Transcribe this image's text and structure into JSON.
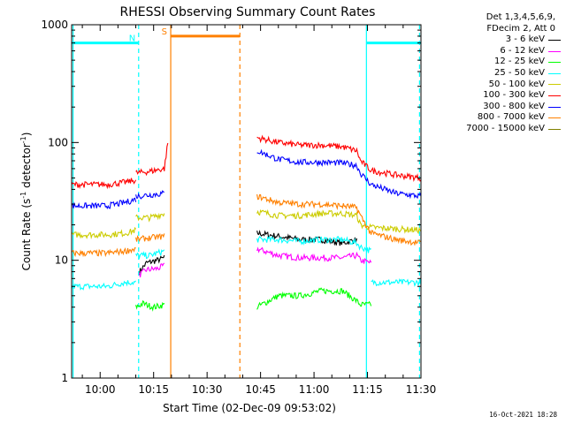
{
  "chart_data": {
    "type": "line",
    "title": "RHESSI Observing Summary Count Rates",
    "xlabel": "Start Time (02-Dec-09 09:53:02)",
    "ylabel_main": "Count Rate (s",
    "ylabel_sup1": "-1",
    "ylabel_mid": " detector",
    "ylabel_sup2": "-1",
    "ylabel_end": ")",
    "yscale": "log",
    "ylim": [
      1,
      1000
    ],
    "xlim_minutes": [
      -8,
      90
    ],
    "x_tick_labels": [
      "10:00",
      "10:15",
      "10:30",
      "10:45",
      "11:00",
      "11:15",
      "11:30"
    ],
    "x_tick_minutes": [
      0,
      15,
      30,
      45,
      60,
      75,
      90
    ],
    "y_tick_labels": [
      "1",
      "10",
      "100",
      "1000"
    ],
    "y_tick_values": [
      1,
      10,
      100,
      1000
    ],
    "legend_header": [
      "Det 1,3,4,5,6,9,",
      "FDecim 2, Att 0"
    ],
    "series": [
      {
        "name": "3 - 6 keV",
        "color": "#000000",
        "segments": [
          [
            [
              11,
              8
            ],
            [
              13,
              9.5
            ],
            [
              16,
              10
            ],
            [
              18,
              10.5
            ]
          ],
          [
            [
              44,
              17
            ],
            [
              50,
              16
            ],
            [
              56,
              15
            ],
            [
              62,
              15
            ],
            [
              68,
              14
            ],
            [
              72,
              15
            ]
          ]
        ]
      },
      {
        "name": "6 - 12 keV",
        "color": "#ff00ff",
        "segments": [
          [
            [
              11,
              7.5
            ],
            [
              13,
              8.3
            ],
            [
              16,
              8.5
            ],
            [
              18,
              9
            ]
          ],
          [
            [
              44,
              12.5
            ],
            [
              50,
              11
            ],
            [
              56,
              10.5
            ],
            [
              62,
              10.5
            ],
            [
              68,
              10.5
            ],
            [
              72,
              11
            ],
            [
              73,
              10
            ],
            [
              76,
              9.5
            ]
          ]
        ]
      },
      {
        "name": "12 - 25 keV",
        "color": "#00ff00",
        "segments": [
          [
            [
              10,
              4
            ],
            [
              12,
              4.3
            ],
            [
              15,
              4
            ],
            [
              18,
              4.2
            ]
          ],
          [
            [
              44,
              4
            ],
            [
              50,
              5
            ],
            [
              56,
              5
            ],
            [
              62,
              5.5
            ],
            [
              68,
              5.5
            ],
            [
              72,
              4.5
            ],
            [
              73,
              4.2
            ],
            [
              76,
              4.2
            ]
          ]
        ]
      },
      {
        "name": "25 - 50 keV",
        "color": "#00ffff",
        "segments": [
          [
            [
              -8,
              6
            ],
            [
              2,
              6
            ],
            [
              7,
              6.5
            ],
            [
              10,
              6.5
            ]
          ],
          [
            [
              10,
              11
            ],
            [
              14,
              11
            ],
            [
              18,
              12
            ]
          ],
          [
            [
              44,
              15
            ],
            [
              50,
              15
            ],
            [
              56,
              14.5
            ],
            [
              62,
              15
            ],
            [
              68,
              15
            ],
            [
              72,
              14
            ],
            [
              73,
              13
            ],
            [
              76,
              12
            ]
          ],
          [
            [
              76,
              6.5
            ],
            [
              83,
              6.5
            ],
            [
              90,
              6.5
            ]
          ]
        ]
      },
      {
        "name": "50 - 100 keV",
        "color": "#cccc00",
        "segments": [
          [
            [
              -8,
              16.5
            ],
            [
              2,
              16.5
            ],
            [
              7,
              17
            ],
            [
              10,
              18
            ]
          ],
          [
            [
              10,
              23
            ],
            [
              14,
              23
            ],
            [
              18,
              25
            ]
          ],
          [
            [
              44,
              26
            ],
            [
              50,
              24
            ],
            [
              56,
              24
            ],
            [
              62,
              25
            ],
            [
              68,
              25
            ],
            [
              72,
              24
            ],
            [
              73,
              20
            ],
            [
              76,
              19
            ],
            [
              83,
              18.5
            ],
            [
              90,
              18
            ]
          ]
        ]
      },
      {
        "name": "100 - 300 keV",
        "color": "#ff0000",
        "segments": [
          [
            [
              -8,
              44
            ],
            [
              2,
              44
            ],
            [
              7,
              46
            ],
            [
              10,
              48
            ]
          ],
          [
            [
              10,
              55
            ],
            [
              14,
              57
            ],
            [
              18,
              60
            ],
            [
              19,
              100
            ]
          ],
          [
            [
              44,
              110
            ],
            [
              50,
              100
            ],
            [
              56,
              95
            ],
            [
              62,
              95
            ],
            [
              68,
              92
            ],
            [
              72,
              85
            ],
            [
              73,
              70
            ],
            [
              76,
              58
            ],
            [
              83,
              53
            ],
            [
              90,
              50
            ]
          ]
        ]
      },
      {
        "name": "300 - 800 keV",
        "color": "#0000ff",
        "segments": [
          [
            [
              -8,
              29
            ],
            [
              2,
              29
            ],
            [
              7,
              31
            ],
            [
              10,
              33
            ]
          ],
          [
            [
              10,
              35
            ],
            [
              14,
              36
            ],
            [
              18,
              37
            ]
          ],
          [
            [
              44,
              85
            ],
            [
              50,
              72
            ],
            [
              56,
              68
            ],
            [
              62,
              68
            ],
            [
              68,
              67
            ],
            [
              72,
              64
            ],
            [
              73,
              55
            ],
            [
              76,
              44
            ],
            [
              83,
              37
            ],
            [
              90,
              35
            ]
          ]
        ]
      },
      {
        "name": "800 - 7000 keV",
        "color": "#ff8000",
        "segments": [
          [
            [
              -8,
              11.5
            ],
            [
              2,
              11.5
            ],
            [
              7,
              12
            ],
            [
              10,
              12.5
            ]
          ],
          [
            [
              10,
              15
            ],
            [
              14,
              15.5
            ],
            [
              18,
              16
            ]
          ],
          [
            [
              44,
              35
            ],
            [
              50,
              31
            ],
            [
              56,
              30
            ],
            [
              62,
              30
            ],
            [
              68,
              29
            ],
            [
              72,
              28
            ],
            [
              73,
              24
            ],
            [
              76,
              17
            ],
            [
              83,
              15
            ],
            [
              90,
              14
            ]
          ]
        ]
      },
      {
        "name": "7000 - 15000 keV",
        "color": "#808000",
        "segments": []
      }
    ],
    "flags": [
      {
        "label": "N",
        "color": "#00ffff",
        "level": 700,
        "ranges": [
          [
            -8,
            10.8
          ],
          [
            74.7,
            90
          ]
        ],
        "label_minute": 9
      },
      {
        "label": "S",
        "color": "#ff8000",
        "level": 800,
        "ranges": [
          [
            19.8,
            39.2
          ]
        ],
        "label_minute": 18
      }
    ],
    "vertical_markers": [
      {
        "minute": -7.6,
        "color": "#00ffff",
        "style": "solid"
      },
      {
        "minute": 10.8,
        "color": "#00ffff",
        "style": "dashed"
      },
      {
        "minute": 19.8,
        "color": "#ff8000",
        "style": "solid"
      },
      {
        "minute": 39.2,
        "color": "#ff8000",
        "style": "dashed"
      },
      {
        "minute": 74.7,
        "color": "#00ffff",
        "style": "solid"
      },
      {
        "minute": 89.6,
        "color": "#00ffff",
        "style": "dashed"
      }
    ],
    "grid": false,
    "legend_position": "top-right outside"
  },
  "timestamp": "16-Oct-2021 18:28"
}
